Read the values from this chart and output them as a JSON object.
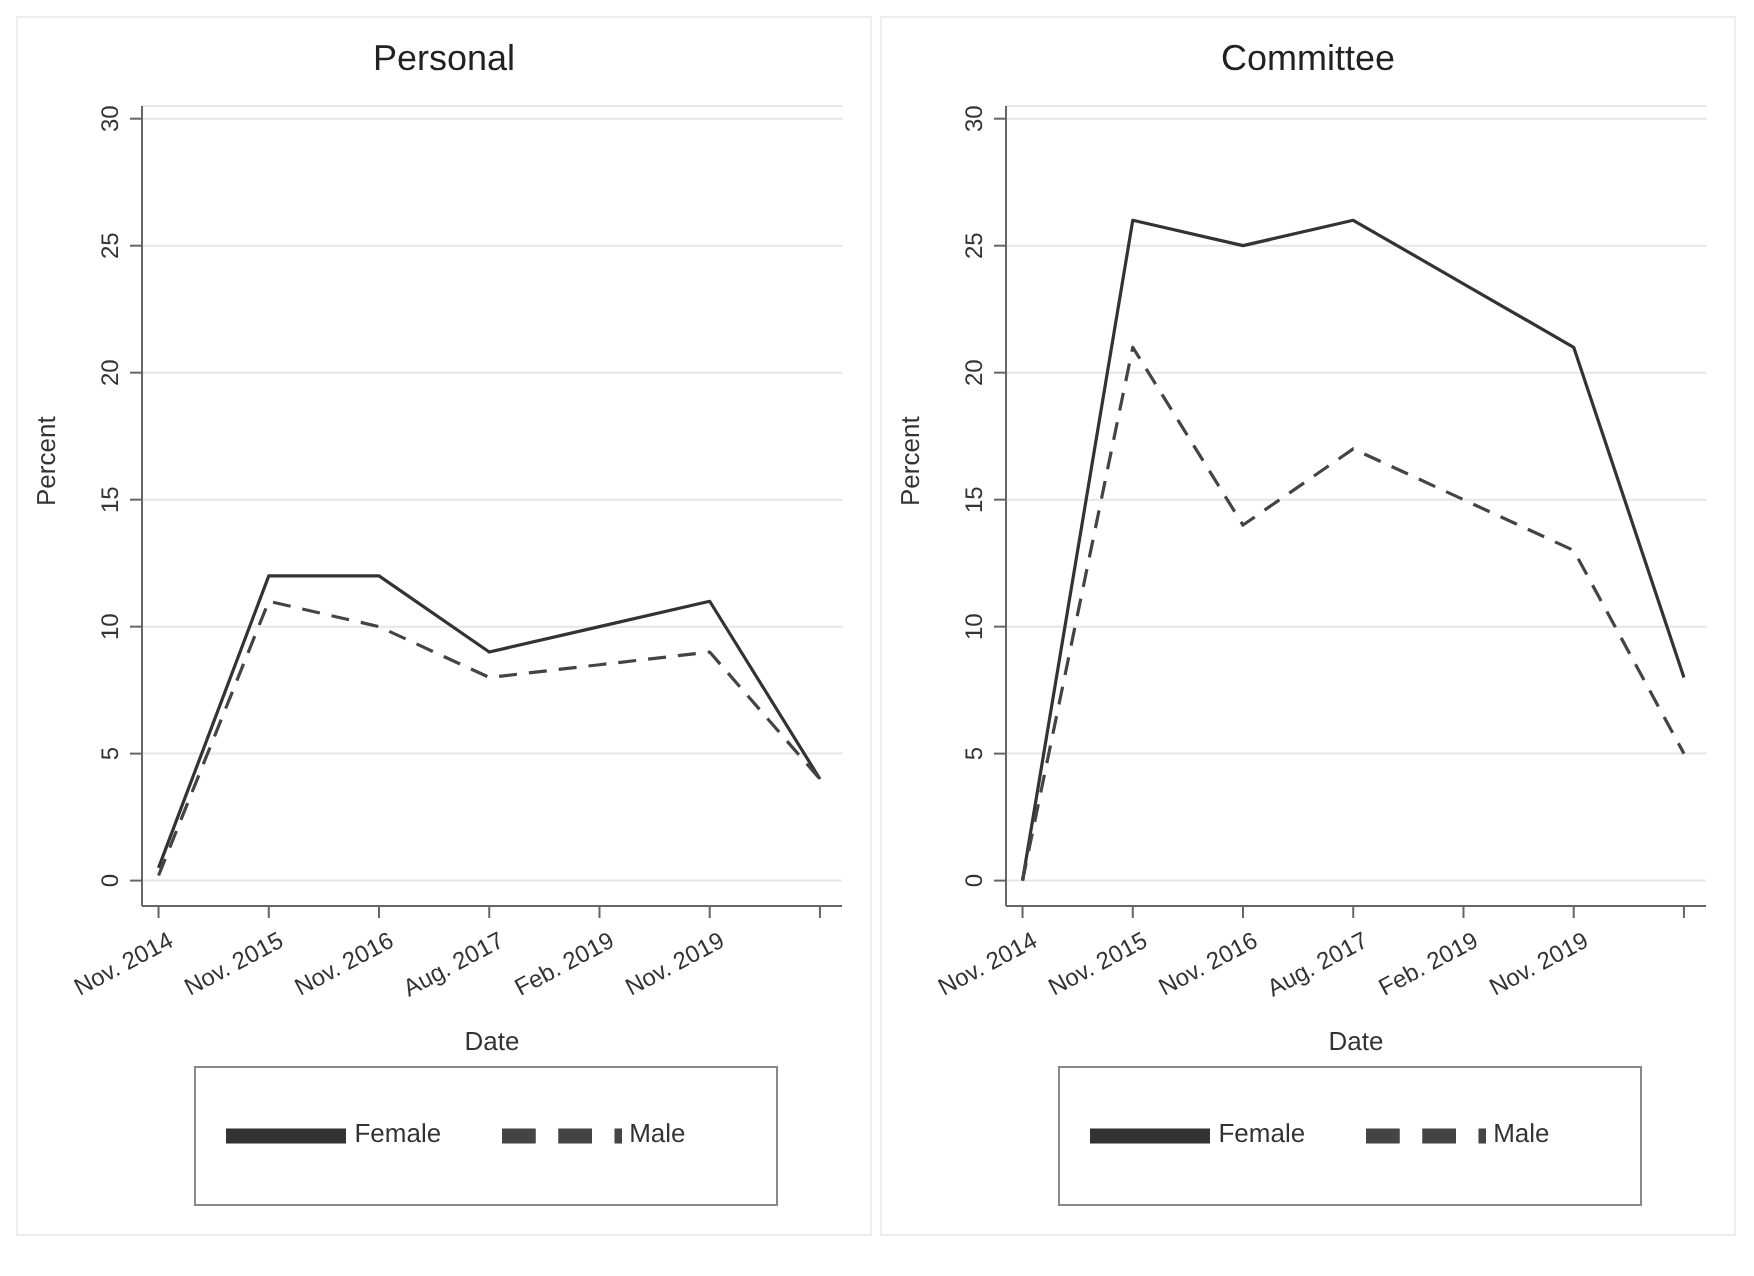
{
  "chart_data": [
    {
      "type": "line",
      "title": "Personal",
      "xlabel": "Date",
      "ylabel": "Percent",
      "categories": [
        "Nov. 2014",
        "Nov. 2015",
        "Nov. 2016",
        "Aug. 2017",
        "Feb. 2019",
        "Nov. 2019",
        null
      ],
      "ylim": [
        -1,
        30.5
      ],
      "yticks": [
        0,
        5,
        10,
        15,
        20,
        25,
        30
      ],
      "grid": "y",
      "legend": "bottom",
      "marker": "none",
      "series": [
        {
          "name": "Female",
          "color": "#333333",
          "line_style": "solid",
          "values": [
            0.5,
            12,
            12,
            9,
            10,
            11,
            4
          ]
        },
        {
          "name": "Male",
          "color": "#444444",
          "line_style": "dashed",
          "values": [
            0.2,
            11,
            10,
            8,
            8.5,
            9,
            4
          ]
        }
      ]
    },
    {
      "type": "line",
      "title": "Committee",
      "xlabel": "Date",
      "ylabel": "Percent",
      "categories": [
        "Nov. 2014",
        "Nov. 2015",
        "Nov. 2016",
        "Aug. 2017",
        "Feb. 2019",
        "Nov. 2019",
        null
      ],
      "ylim": [
        -1,
        30.5
      ],
      "yticks": [
        0,
        5,
        10,
        15,
        20,
        25,
        30
      ],
      "grid": "y",
      "legend": "bottom",
      "marker": "none",
      "series": [
        {
          "name": "Female",
          "color": "#333333",
          "line_style": "solid",
          "values": [
            0,
            26,
            25,
            26,
            23.5,
            21,
            8
          ]
        },
        {
          "name": "Male",
          "color": "#444444",
          "line_style": "dashed",
          "values": [
            0,
            21,
            14,
            17,
            15,
            13,
            5
          ]
        }
      ]
    }
  ]
}
